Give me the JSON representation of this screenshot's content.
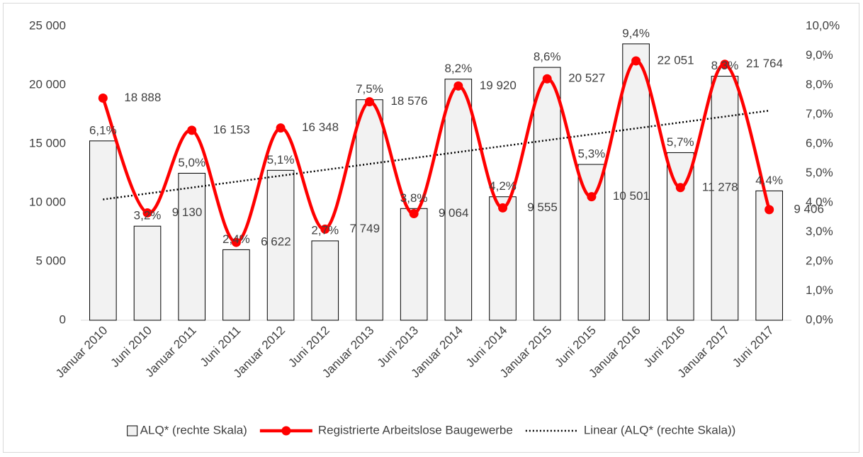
{
  "chart_data": {
    "type": "bar_line",
    "categories": [
      "Januar 2010",
      "Juni 2010",
      "Januar 2011",
      "Juni 2011",
      "Januar 2012",
      "Juni 2012",
      "Januar 2013",
      "Juni 2013",
      "Januar 2014",
      "Juni 2014",
      "Januar 2015",
      "Juni 2015",
      "Januar 2016",
      "Juni 2016",
      "Januar 2017",
      "Juni 2017"
    ],
    "series": [
      {
        "name": "ALQ* (rechte Skala)",
        "type": "bar",
        "axis": "y2",
        "color": "#f2f2f2",
        "values": [
          6.1,
          3.2,
          5.0,
          2.4,
          5.1,
          2.7,
          7.5,
          3.8,
          8.2,
          4.2,
          8.6,
          5.3,
          9.4,
          5.7,
          8.3,
          4.4
        ],
        "value_labels": [
          "6,1%",
          "3,2%",
          "5,0%",
          "2,4%",
          "5,1%",
          "2,7%",
          "7,5%",
          "3,8%",
          "8,2%",
          "4,2%",
          "8,6%",
          "5,3%",
          "9,4%",
          "5,7%",
          "8,3%",
          "4,4%"
        ]
      },
      {
        "name": "Registrierte Arbeitslose Baugewerbe",
        "type": "line",
        "axis": "y",
        "color": "#ff0000",
        "smooth": true,
        "values": [
          18888,
          9130,
          16153,
          6622,
          16348,
          7749,
          18576,
          9064,
          19920,
          9555,
          20527,
          10501,
          22051,
          11278,
          21764,
          9406
        ],
        "value_labels": [
          "18 888",
          "9 130",
          "16 153",
          "6 622",
          "16 348",
          "7 749",
          "18 576",
          "9 064",
          "19 920",
          "9 555",
          "20 527",
          "10 501",
          "22 051",
          "11 278",
          "21 764",
          "9 406"
        ]
      }
    ],
    "trendline": {
      "name": "Linear (ALQ* (rechte Skala))",
      "series": 0,
      "color": "#000000"
    },
    "ylim": [
      0,
      25000
    ],
    "yticks": [
      0,
      {
        "value": 5000,
        "label": "5 000"
      },
      {
        "value": 10000,
        "label": "10 000"
      },
      {
        "value": 15000,
        "label": "15 000"
      },
      {
        "value": 20000,
        "label": "20 000"
      },
      {
        "value": 25000,
        "label": "25 000"
      }
    ],
    "y2lim": [
      0,
      10
    ],
    "y2ticks": [
      {
        "value": 0,
        "label": "0,0%"
      },
      {
        "value": 1,
        "label": "1,0%"
      },
      {
        "value": 2,
        "label": "2,0%"
      },
      {
        "value": 3,
        "label": "3,0%"
      },
      {
        "value": 4,
        "label": "4,0%"
      },
      {
        "value": 5,
        "label": "5,0%"
      },
      {
        "value": 6,
        "label": "6,0%"
      },
      {
        "value": 7,
        "label": "7,0%"
      },
      {
        "value": 8,
        "label": "8,0%"
      },
      {
        "value": 9,
        "label": "9,0%"
      },
      {
        "value": 10,
        "label": "10,0%"
      }
    ],
    "grid": false,
    "legend": "bottom"
  }
}
